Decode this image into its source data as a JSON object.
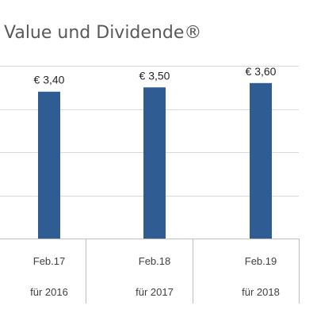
{
  "chart_data": {
    "type": "bar",
    "title": "Value und Dividende®",
    "categories": [
      [
        "Feb.17",
        "für 2016"
      ],
      [
        "Feb.18",
        "für 2017"
      ],
      [
        "Feb.19",
        "für 2018"
      ]
    ],
    "values": [
      3.4,
      3.5,
      3.6
    ],
    "data_labels": [
      "€  3,40",
      "€  3,50",
      "€  3,60"
    ],
    "xlabel": "",
    "ylabel": "",
    "ylim": [
      0,
      4
    ],
    "grid": true,
    "colors": {
      "bar": "#2e5c93",
      "grid": "#d9d9d9",
      "title": "#595959"
    }
  }
}
